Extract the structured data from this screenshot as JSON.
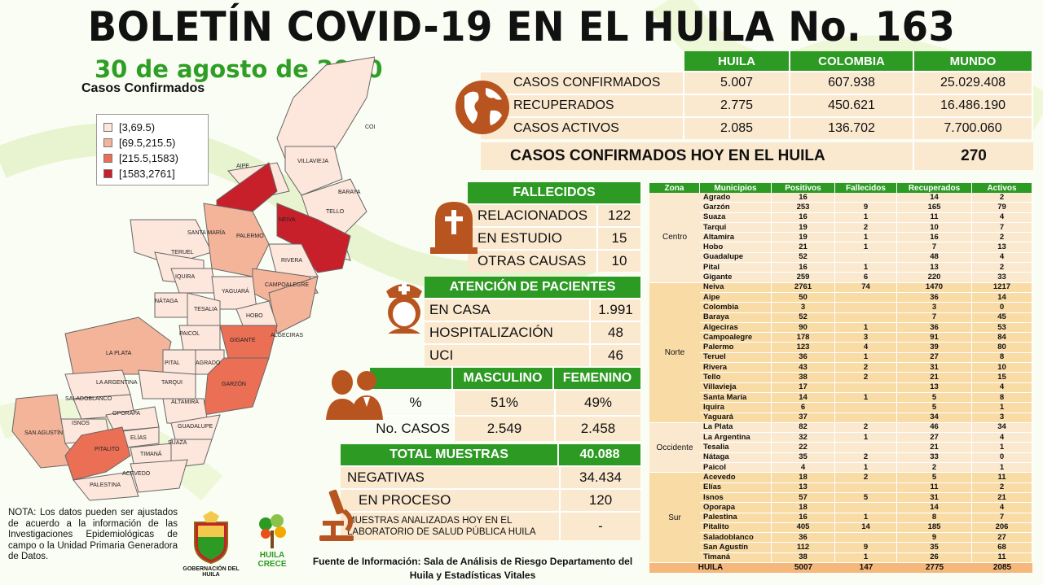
{
  "header": {
    "title": "BOLETÍN COVID-19 EN EL HUILA No. 163",
    "date": "30 de agosto de 2020",
    "map_subtitle": "Casos Confirmados"
  },
  "legend": [
    {
      "label": "[3,69.5)",
      "color": "#fde6dc"
    },
    {
      "label": "[69.5,215.5)",
      "color": "#f4b49a"
    },
    {
      "label": "[215.5,1583)",
      "color": "#ea6f55"
    },
    {
      "label": "[1583,2761]",
      "color": "#c8202a"
    }
  ],
  "map_labels": [
    "COLOMBIA",
    "AIPE",
    "VILLAVIEJA",
    "BARAYA",
    "TELLO",
    "NEIVA",
    "SANTA MARÍA",
    "PALERMO",
    "TERUEL",
    "RIVERA",
    "IQUIRA",
    "CAMPOALEGRE",
    "YAGUARÁ",
    "NÁTAGA",
    "TESALIA",
    "HOBO",
    "ALGECIRAS",
    "PAICOL",
    "GIGANTE",
    "LA PLATA",
    "PITAL",
    "AGRADO",
    "LA ARGENTINA",
    "TARQUI",
    "GARZÓN",
    "SALADOBLANCO",
    "ALTAMIRA",
    "OPORAPA",
    "ISNOS",
    "GUADALUPE",
    "SAN AGUSTÍN",
    "ELÍAS",
    "TIMANÁ",
    "SUAZA",
    "PITALITO",
    "ACEVEDO",
    "PALESTINA"
  ],
  "summary": {
    "headers": [
      "HUILA",
      "COLOMBIA",
      "MUNDO"
    ],
    "rows": [
      {
        "label": "CASOS CONFIRMADOS",
        "values": [
          "5.007",
          "607.938",
          "25.029.408"
        ]
      },
      {
        "label": "RECUPERADOS",
        "values": [
          "2.775",
          "450.621",
          "16.486.190"
        ]
      },
      {
        "label": "CASOS ACTIVOS",
        "values": [
          "2.085",
          "136.702",
          "7.700.060"
        ]
      }
    ],
    "today_label": "CASOS CONFIRMADOS  HOY EN EL HUILA",
    "today_value": "270"
  },
  "fallecidos": {
    "title": "FALLECIDOS",
    "rows": [
      {
        "label": "RELACIONADOS",
        "value": "122"
      },
      {
        "label": "EN ESTUDIO",
        "value": "15"
      },
      {
        "label": "OTRAS CAUSAS",
        "value": "10"
      }
    ]
  },
  "atencion": {
    "title": "ATENCIÓN DE PACIENTES",
    "rows": [
      {
        "label": "EN CASA",
        "value": "1.991"
      },
      {
        "label": "HOSPITALIZACIÓN",
        "value": "48"
      },
      {
        "label": "UCI",
        "value": "46"
      }
    ]
  },
  "genero": {
    "headers": [
      "MASCULINO",
      "FEMENINO"
    ],
    "rows": [
      {
        "label": "%",
        "values": [
          "51%",
          "49%"
        ]
      },
      {
        "label": "No. CASOS",
        "values": [
          "2.549",
          "2.458"
        ]
      }
    ]
  },
  "muestras": {
    "title": "TOTAL MUESTRAS",
    "total": "40.088",
    "rows": [
      {
        "label": "NEGATIVAS",
        "value": "34.434"
      },
      {
        "label": "EN PROCESO",
        "value": "120"
      },
      {
        "label": "MUESTRAS ANALIZADAS HOY EN EL LABORATORIO  DE SALUD PÚBLICA HUILA",
        "value": "-"
      }
    ]
  },
  "municipios": {
    "headers": [
      "Zona",
      "Municipios",
      "Positivos",
      "Fallecidos",
      "Recuperados",
      "Activos"
    ],
    "zones": [
      {
        "name": "Centro",
        "rows": [
          [
            "Agrado",
            "16",
            "",
            "14",
            "2"
          ],
          [
            "Garzón",
            "253",
            "9",
            "165",
            "79"
          ],
          [
            "Suaza",
            "16",
            "1",
            "11",
            "4"
          ],
          [
            "Tarqui",
            "19",
            "2",
            "10",
            "7"
          ],
          [
            "Altamira",
            "19",
            "1",
            "16",
            "2"
          ],
          [
            "Hobo",
            "21",
            "1",
            "7",
            "13"
          ],
          [
            "Guadalupe",
            "52",
            "",
            "48",
            "4"
          ],
          [
            "Pital",
            "16",
            "1",
            "13",
            "2"
          ],
          [
            "Gigante",
            "259",
            "6",
            "220",
            "33"
          ]
        ]
      },
      {
        "name": "Norte",
        "rows": [
          [
            "Neiva",
            "2761",
            "74",
            "1470",
            "1217"
          ],
          [
            "Aipe",
            "50",
            "",
            "36",
            "14"
          ],
          [
            "Colombia",
            "3",
            "",
            "3",
            "0"
          ],
          [
            "Baraya",
            "52",
            "",
            "7",
            "45"
          ],
          [
            "Algeciras",
            "90",
            "1",
            "36",
            "53"
          ],
          [
            "Campoalegre",
            "178",
            "3",
            "91",
            "84"
          ],
          [
            "Palermo",
            "123",
            "4",
            "39",
            "80"
          ],
          [
            "Teruel",
            "36",
            "1",
            "27",
            "8"
          ],
          [
            "Rivera",
            "43",
            "2",
            "31",
            "10"
          ],
          [
            "Tello",
            "38",
            "2",
            "21",
            "15"
          ],
          [
            "Villavieja",
            "17",
            "",
            "13",
            "4"
          ],
          [
            "Santa María",
            "14",
            "1",
            "5",
            "8"
          ],
          [
            "Iquira",
            "6",
            "",
            "5",
            "1"
          ],
          [
            "Yaguará",
            "37",
            "",
            "34",
            "3"
          ]
        ]
      },
      {
        "name": "Occidente",
        "rows": [
          [
            "La Plata",
            "82",
            "2",
            "46",
            "34"
          ],
          [
            "La Argentina",
            "32",
            "1",
            "27",
            "4"
          ],
          [
            "Tesalia",
            "22",
            "",
            "21",
            "1"
          ],
          [
            "Nátaga",
            "35",
            "2",
            "33",
            "0"
          ],
          [
            "Paicol",
            "4",
            "1",
            "2",
            "1"
          ]
        ]
      },
      {
        "name": "Sur",
        "rows": [
          [
            "Acevedo",
            "18",
            "2",
            "5",
            "11"
          ],
          [
            "Elías",
            "13",
            "",
            "11",
            "2"
          ],
          [
            "Isnos",
            "57",
            "5",
            "31",
            "21"
          ],
          [
            "Oporapa",
            "18",
            "",
            "14",
            "4"
          ],
          [
            "Palestina",
            "16",
            "1",
            "8",
            "7"
          ],
          [
            "Pitalito",
            "405",
            "14",
            "185",
            "206"
          ],
          [
            "Saladoblanco",
            "36",
            "",
            "9",
            "27"
          ],
          [
            "San Agustín",
            "112",
            "9",
            "35",
            "68"
          ],
          [
            "Timaná",
            "38",
            "1",
            "26",
            "11"
          ]
        ]
      }
    ],
    "total": [
      "HUILA",
      "5007",
      "147",
      "2775",
      "2085"
    ]
  },
  "nota": "NOTA: Los datos pueden ser ajustados de acuerdo a la información de las Investigaciones Epidemiológicas de campo o la Unidad Primaria Generadora de Datos.",
  "fuente": "Fuente de Información:  Sala de Análisis de Riesgo Departamento del Huila y Estadísticas  Vitales",
  "logos": {
    "gobernacion": "GOBERNACIÓN DEL HUILA",
    "crece_1": "HUILA",
    "crece_2": "CRECE"
  },
  "colors": {
    "green": "#2c9a23",
    "cream": "#fbe9cf",
    "icon": "#b8541f"
  }
}
